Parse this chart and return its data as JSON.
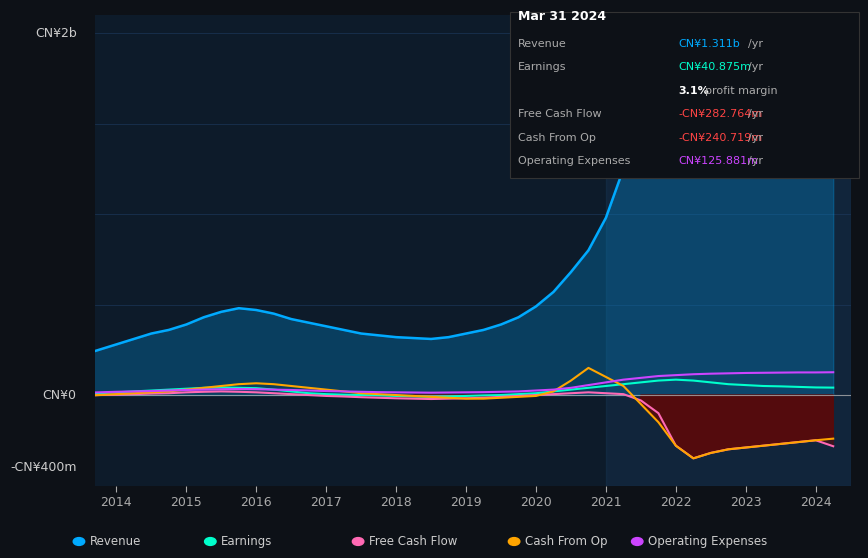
{
  "bg_color": "#0d1117",
  "plot_bg_color": "#0d1b2a",
  "grid_color": "#1e3a5f",
  "title_text": "Mar 31 2024",
  "tooltip": {
    "Revenue": {
      "value": "CN¥1.311b /yr",
      "color": "#00aaff"
    },
    "Earnings": {
      "value": "CN¥40.875m /yr",
      "color": "#00ffcc"
    },
    "profit_margin": {
      "value": "3.1% profit margin",
      "color": "#ffffff"
    },
    "Free Cash Flow": {
      "value": "-CN¥282.764m /yr",
      "color": "#ff4444"
    },
    "Cash From Op": {
      "value": "-CN¥240.719m /yr",
      "color": "#ff4444"
    },
    "Operating Expenses": {
      "value": "CN¥125.881m /yr",
      "color": "#cc44ff"
    }
  },
  "ylabel_top": "CN¥2b",
  "ylabel_mid": "CN¥0",
  "ylabel_bot": "-CN¥400m",
  "xlim": [
    2013.7,
    2024.5
  ],
  "ylim": [
    -500,
    2100
  ],
  "colors": {
    "revenue": "#00aaff",
    "earnings": "#00ffcc",
    "free_cash_flow": "#ff69b4",
    "cash_from_op": "#ffa500",
    "operating_expenses": "#cc44ff"
  },
  "years": [
    2013.25,
    2013.5,
    2013.75,
    2014.0,
    2014.25,
    2014.5,
    2014.75,
    2015.0,
    2015.25,
    2015.5,
    2015.75,
    2016.0,
    2016.25,
    2016.5,
    2016.75,
    2017.0,
    2017.25,
    2017.5,
    2017.75,
    2018.0,
    2018.25,
    2018.5,
    2018.75,
    2019.0,
    2019.25,
    2019.5,
    2019.75,
    2020.0,
    2020.25,
    2020.5,
    2020.75,
    2021.0,
    2021.25,
    2021.5,
    2021.75,
    2022.0,
    2022.25,
    2022.5,
    2022.75,
    2023.0,
    2023.25,
    2023.5,
    2023.75,
    2024.0,
    2024.25
  ],
  "revenue": [
    200,
    220,
    250,
    280,
    310,
    340,
    360,
    390,
    430,
    460,
    480,
    470,
    450,
    420,
    400,
    380,
    360,
    340,
    330,
    320,
    315,
    310,
    320,
    340,
    360,
    390,
    430,
    490,
    570,
    680,
    800,
    980,
    1250,
    1600,
    1800,
    1900,
    1980,
    2000,
    1950,
    1850,
    1750,
    1650,
    1550,
    1400,
    1311
  ],
  "earnings": [
    5,
    8,
    10,
    15,
    20,
    25,
    30,
    35,
    40,
    42,
    40,
    38,
    30,
    20,
    10,
    5,
    2,
    0,
    -2,
    -5,
    -8,
    -10,
    -8,
    -5,
    -2,
    0,
    5,
    10,
    20,
    30,
    40,
    50,
    60,
    70,
    80,
    85,
    80,
    70,
    60,
    55,
    50,
    48,
    45,
    42,
    41
  ],
  "free_cash_flow": [
    -5,
    -3,
    0,
    2,
    5,
    8,
    10,
    15,
    18,
    20,
    18,
    15,
    10,
    5,
    0,
    -5,
    -8,
    -12,
    -15,
    -18,
    -20,
    -22,
    -20,
    -18,
    -15,
    -10,
    -5,
    0,
    5,
    10,
    15,
    10,
    5,
    -30,
    -100,
    -280,
    -350,
    -320,
    -300,
    -290,
    -280,
    -270,
    -260,
    -250,
    -283
  ],
  "cash_from_op": [
    -10,
    -5,
    0,
    5,
    10,
    15,
    20,
    30,
    40,
    50,
    60,
    65,
    60,
    50,
    40,
    30,
    20,
    10,
    5,
    0,
    -5,
    -10,
    -15,
    -20,
    -20,
    -15,
    -10,
    -5,
    20,
    80,
    150,
    100,
    50,
    -50,
    -150,
    -280,
    -350,
    -320,
    -300,
    -290,
    -280,
    -270,
    -260,
    -250,
    -241
  ],
  "operating_expenses": [
    10,
    12,
    15,
    18,
    20,
    22,
    25,
    28,
    30,
    32,
    33,
    32,
    30,
    28,
    25,
    22,
    20,
    18,
    16,
    15,
    14,
    13,
    14,
    15,
    16,
    18,
    20,
    25,
    30,
    40,
    55,
    70,
    85,
    95,
    105,
    110,
    115,
    118,
    120,
    122,
    123,
    124,
    125,
    125,
    126
  ],
  "xticks": [
    2014,
    2015,
    2016,
    2017,
    2018,
    2019,
    2020,
    2021,
    2022,
    2023,
    2024
  ],
  "legend": [
    {
      "label": "Revenue",
      "color": "#00aaff"
    },
    {
      "label": "Earnings",
      "color": "#00ffcc"
    },
    {
      "label": "Free Cash Flow",
      "color": "#ff69b4"
    },
    {
      "label": "Cash From Op",
      "color": "#ffa500"
    },
    {
      "label": "Operating Expenses",
      "color": "#cc44ff"
    }
  ],
  "highlight_x": 2021.0
}
